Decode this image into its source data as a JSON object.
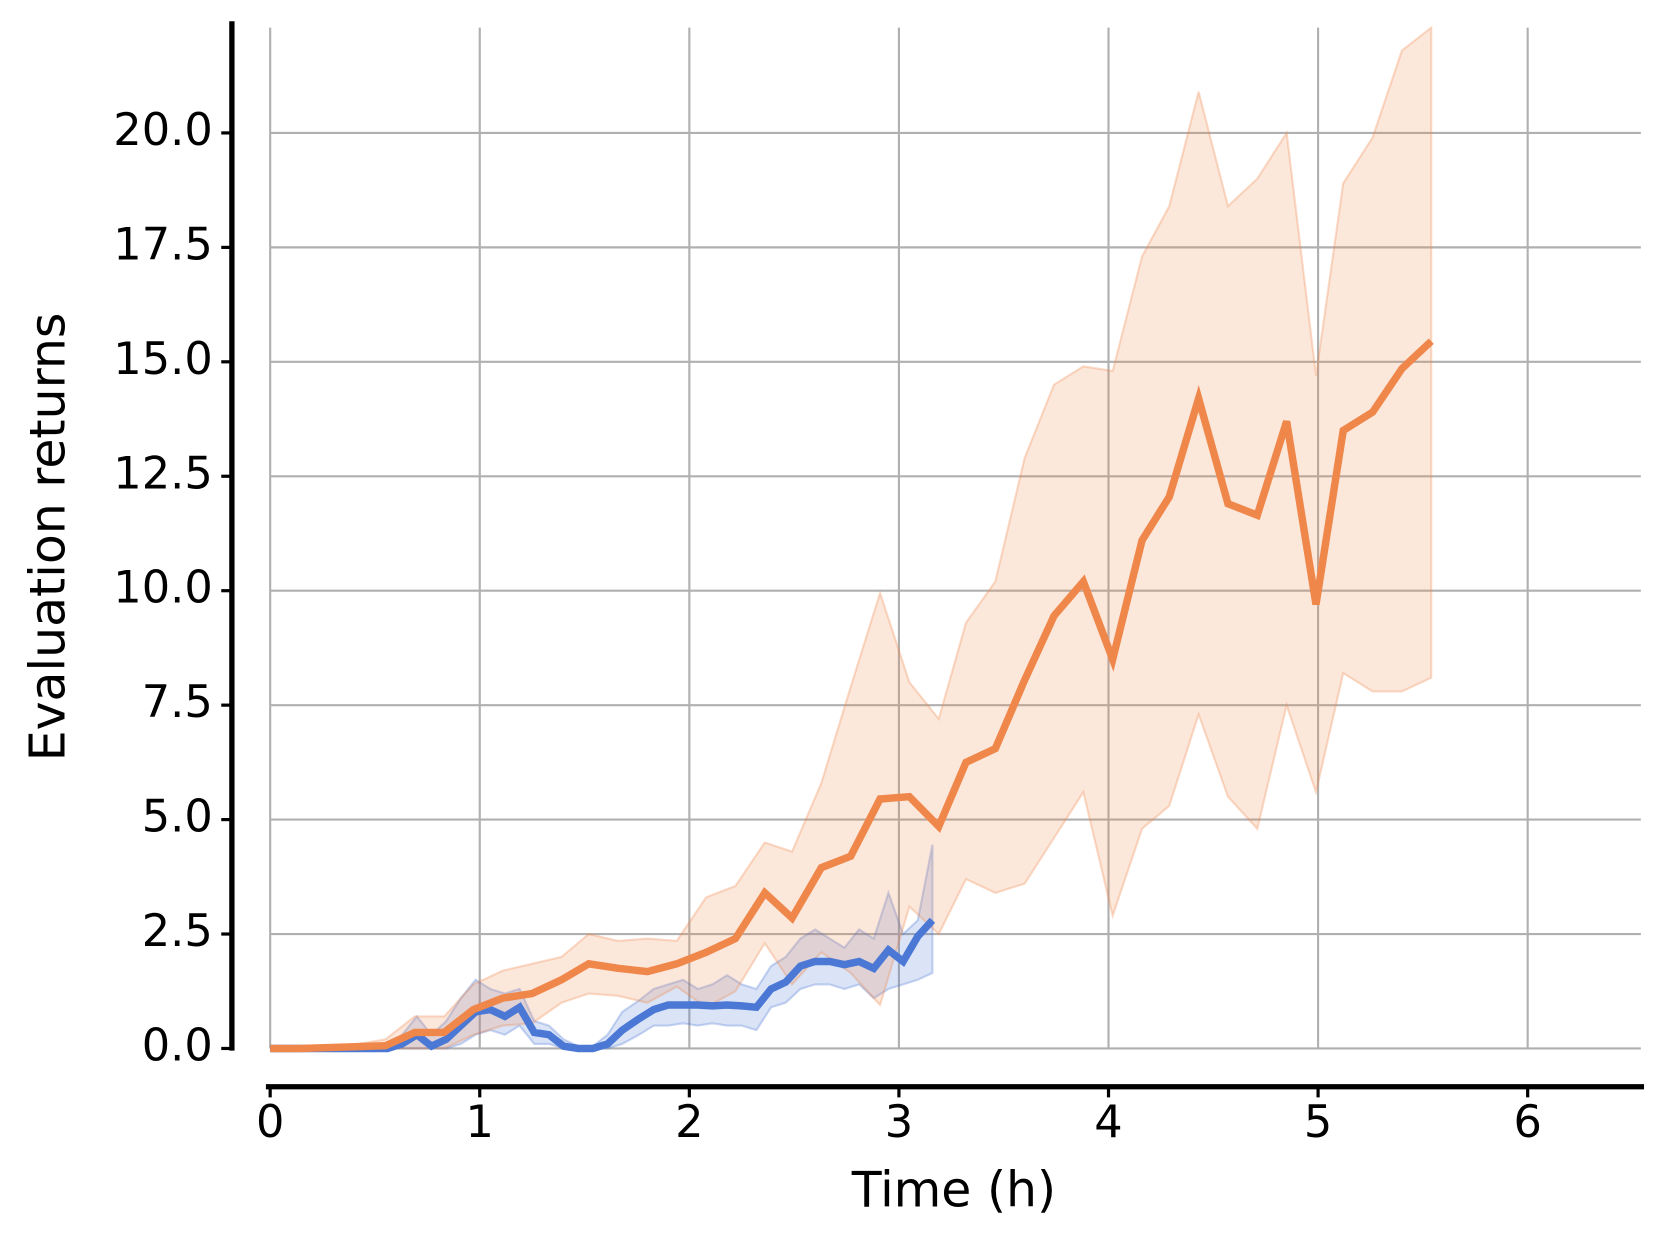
{
  "chart_data": {
    "type": "line",
    "xlabel": "Time (h)",
    "ylabel": "Evaluation returns",
    "xlim": [
      0,
      6.54
    ],
    "ylim": [
      0,
      22.3
    ],
    "xticks": [
      0,
      1,
      2,
      3,
      4,
      5,
      6
    ],
    "yticks": [
      {
        "value": 0,
        "label": "0.0"
      },
      2.5,
      {
        "value": 5,
        "label": "5.0"
      },
      7.5,
      {
        "value": 10,
        "label": "10.0"
      },
      12.5,
      {
        "value": 15,
        "label": "15.0"
      },
      17.5,
      {
        "value": 20,
        "label": "20.0"
      }
    ],
    "grid": true,
    "series": [
      {
        "color": "#4b78d5",
        "x": [
          0,
          0.07,
          0.14,
          0.21,
          0.28,
          0.35,
          0.42,
          0.49,
          0.56,
          0.63,
          0.7,
          0.77,
          0.84,
          0.91,
          0.98,
          1.05,
          1.12,
          1.19,
          1.26,
          1.33,
          1.4,
          1.47,
          1.54,
          1.61,
          1.68,
          1.76,
          1.83,
          1.9,
          1.97,
          2.04,
          2.11,
          2.18,
          2.25,
          2.32,
          2.39,
          2.46,
          2.53,
          2.6,
          2.67,
          2.74,
          2.81,
          2.88,
          2.95,
          3.02,
          3.09,
          3.16
        ],
        "values": [
          0,
          0,
          0,
          0,
          0,
          0,
          0,
          0,
          0,
          0.1,
          0.3,
          0.05,
          0.2,
          0.5,
          0.8,
          0.85,
          0.7,
          0.9,
          0.35,
          0.3,
          0.05,
          0,
          0,
          0.1,
          0.4,
          0.65,
          0.85,
          0.95,
          0.95,
          0.95,
          0.93,
          0.95,
          0.93,
          0.9,
          1.3,
          1.45,
          1.8,
          1.9,
          1.9,
          1.83,
          1.9,
          1.75,
          2.15,
          1.9,
          2.45,
          2.8
        ],
        "upper": [
          0,
          0,
          0,
          0,
          0,
          0,
          0,
          0,
          0,
          0.3,
          0.7,
          0.3,
          0.6,
          1.1,
          1.5,
          1.3,
          1.2,
          1.3,
          0.6,
          0.5,
          0.2,
          0.05,
          0.05,
          0.3,
          0.8,
          1.05,
          1.3,
          1.4,
          1.5,
          1.3,
          1.4,
          1.6,
          1.4,
          1.3,
          1.8,
          2.0,
          2.4,
          2.6,
          2.4,
          2.2,
          2.6,
          2.4,
          3.4,
          2.5,
          2.8,
          4.45
        ],
        "lower": [
          0,
          0,
          0,
          0,
          0,
          0,
          0,
          0,
          0,
          0,
          0,
          0,
          0,
          0.1,
          0.3,
          0.4,
          0.3,
          0.5,
          0.1,
          0.1,
          0,
          0,
          0,
          0,
          0.1,
          0.3,
          0.5,
          0.5,
          0.55,
          0.5,
          0.55,
          0.5,
          0.5,
          0.4,
          0.9,
          1.0,
          1.3,
          1.4,
          1.4,
          1.3,
          1.4,
          1.1,
          1.3,
          1.4,
          1.5,
          1.65
        ]
      },
      {
        "color": "#ef874b",
        "x": [
          0,
          0.14,
          0.28,
          0.42,
          0.55,
          0.69,
          0.83,
          0.97,
          1.11,
          1.25,
          1.39,
          1.52,
          1.66,
          1.8,
          1.94,
          2.08,
          2.22,
          2.36,
          2.49,
          2.63,
          2.77,
          2.91,
          3.05,
          3.19,
          3.32,
          3.46,
          3.6,
          3.74,
          3.88,
          4.02,
          4.16,
          4.29,
          4.43,
          4.57,
          4.71,
          4.85,
          4.99,
          5.12,
          5.26,
          5.4,
          5.54
        ],
        "values": [
          0,
          0,
          0.02,
          0.04,
          0.06,
          0.35,
          0.35,
          0.85,
          1.1,
          1.2,
          1.5,
          1.85,
          1.75,
          1.68,
          1.85,
          2.1,
          2.4,
          3.4,
          2.85,
          3.95,
          4.2,
          5.45,
          5.5,
          4.85,
          6.25,
          6.55,
          8.05,
          9.45,
          10.2,
          8.5,
          11.1,
          12.05,
          14.2,
          11.9,
          11.65,
          13.7,
          9.7,
          13.5,
          13.9,
          14.85,
          15.45
        ],
        "upper": [
          0,
          0,
          0.05,
          0.1,
          0.2,
          0.7,
          0.7,
          1.4,
          1.7,
          1.85,
          2.0,
          2.5,
          2.35,
          2.4,
          2.35,
          3.3,
          3.55,
          4.5,
          4.3,
          5.8,
          7.9,
          9.95,
          8.0,
          7.2,
          9.3,
          10.2,
          12.9,
          14.5,
          14.9,
          14.8,
          17.3,
          18.4,
          20.9,
          18.4,
          19.0,
          20.0,
          14.7,
          18.9,
          19.9,
          21.8,
          22.3
        ],
        "lower": [
          0,
          0,
          0,
          0,
          0,
          0,
          0,
          0.3,
          0.5,
          0.55,
          1.0,
          1.2,
          1.15,
          1.0,
          1.35,
          0.9,
          1.25,
          2.3,
          1.4,
          2.1,
          1.65,
          0.95,
          3.1,
          2.5,
          3.7,
          3.4,
          3.6,
          4.6,
          5.6,
          2.9,
          4.8,
          5.3,
          7.3,
          5.5,
          4.8,
          7.5,
          5.6,
          8.2,
          7.8,
          7.8,
          8.1
        ]
      }
    ]
  }
}
